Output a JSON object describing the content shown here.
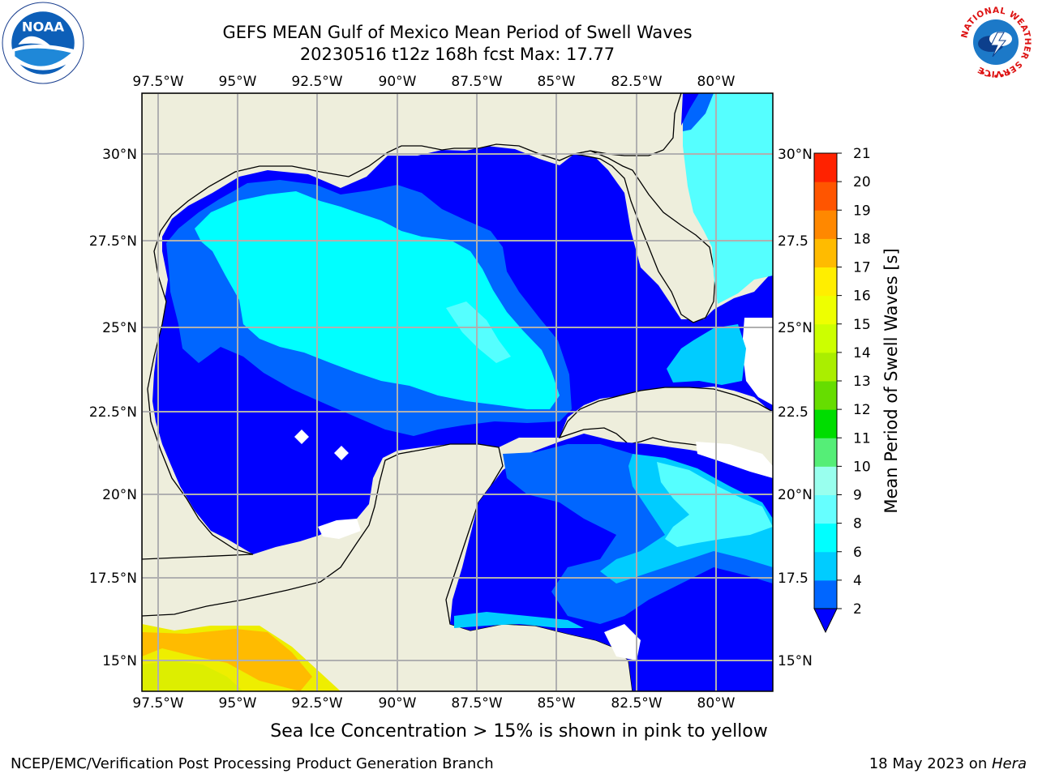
{
  "title": {
    "line1": "GEFS MEAN Gulf of Mexico Mean Period of Swell Waves",
    "line2": "20230516 t12z 168h fcst   Max: 17.77"
  },
  "logos": {
    "left": {
      "icon": "noaa-logo",
      "text": "NOAA"
    },
    "right": {
      "icon": "nws-logo",
      "ring_text": "NATIONAL WEATHER SERVICE"
    }
  },
  "axes": {
    "lon_labels": [
      "97.5°W",
      "95°W",
      "92.5°W",
      "90°W",
      "87.5°W",
      "85°W",
      "82.5°W",
      "80°W"
    ],
    "lat_labels_left": [
      "30°N",
      "27.5°N",
      "25°N",
      "22.5°N",
      "20°N",
      "17.5°N",
      "15°N"
    ],
    "lat_labels_right": [
      "30°N",
      "27.5",
      "25°N",
      "22.5",
      "20°N",
      "17.5",
      "15°N"
    ]
  },
  "colorbar": {
    "label": "Mean Period of Swell Waves [s]",
    "ticks": [
      "2",
      "4",
      "6",
      "8",
      "9",
      "10",
      "11",
      "12",
      "13",
      "14",
      "15",
      "16",
      "17",
      "18",
      "19",
      "20",
      "21"
    ],
    "colors": [
      "#0066ff",
      "#00ccff",
      "#00ffff",
      "#66ffff",
      "#99ffee",
      "#55ee77",
      "#00dd00",
      "#66dd00",
      "#aaee00",
      "#ccff00",
      "#eeff00",
      "#ffee00",
      "#ffbb00",
      "#ff8800",
      "#ff5500",
      "#ff2200"
    ],
    "extend_color": "#0000ff"
  },
  "colors": {
    "land": "#eeeedc",
    "deep_blue": "#0000ff",
    "mid_blue": "#0066ff",
    "light_blue": "#00ccff",
    "cyan": "#00ffff",
    "pale_cyan": "#55ffff",
    "yellow": "#eeee00",
    "orange": "#ffbb00",
    "grid": "#b0b0b0"
  },
  "subtitle": "Sea Ice Concentration > 15% is shown in pink to yellow",
  "footer": {
    "left": "NCEP/EMC/Verification Post Processing Product Generation Branch",
    "right_date": "18 May 2023 on ",
    "right_host": "Hera"
  }
}
